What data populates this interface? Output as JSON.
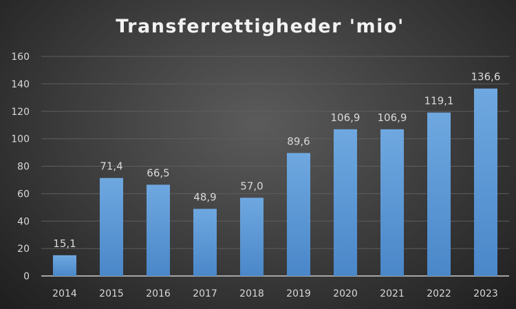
{
  "chart_data": {
    "type": "bar",
    "title": "Transferrettigheder 'mio'",
    "categories": [
      "2014",
      "2015",
      "2016",
      "2017",
      "2018",
      "2019",
      "2020",
      "2021",
      "2022",
      "2023"
    ],
    "values": [
      15.1,
      71.4,
      66.5,
      48.9,
      57.0,
      89.6,
      106.9,
      106.9,
      119.1,
      136.6
    ],
    "value_labels": [
      "15,1",
      "71,4",
      "66,5",
      "48,9",
      "57,0",
      "89,6",
      "106,9",
      "106,9",
      "119,1",
      "136,6"
    ],
    "ylim": [
      0,
      160
    ],
    "yticks": [
      "0",
      "20",
      "40",
      "60",
      "80",
      "100",
      "120",
      "140",
      "160"
    ],
    "grid": true,
    "xlabel": "",
    "ylabel": "",
    "colors": {
      "bar_top": "#6fa8e0",
      "bar_bottom": "#4a87c9",
      "grid": "#5e5e5e",
      "axis": "#a6a6a6"
    }
  }
}
